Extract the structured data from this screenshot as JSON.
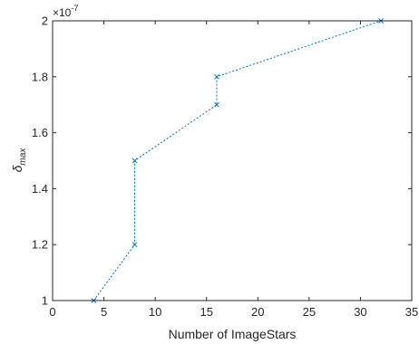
{
  "chart_data": {
    "type": "line",
    "title": "",
    "xlabel": "Number of ImageStars",
    "ylabel_base": "δ",
    "ylabel_sub": "max",
    "xlim": [
      0,
      35
    ],
    "ylim": [
      1.0,
      2.0
    ],
    "y_exponent_label": "×10",
    "y_exponent_power": "-7",
    "xticks": [
      0,
      5,
      10,
      15,
      20,
      25,
      30,
      35
    ],
    "yticks": [
      1.0,
      1.2,
      1.4,
      1.6,
      1.8,
      2.0
    ],
    "ytick_labels": [
      "1",
      "1.2",
      "1.4",
      "1.6",
      "1.8",
      "2"
    ],
    "grid": false,
    "series": [
      {
        "color": "#0072BD",
        "line_style": "dotted",
        "marker": "x",
        "x": [
          4,
          8,
          8,
          16,
          16,
          32
        ],
        "y": [
          1.0,
          1.2,
          1.5,
          1.7,
          1.8,
          2.0
        ]
      }
    ]
  }
}
